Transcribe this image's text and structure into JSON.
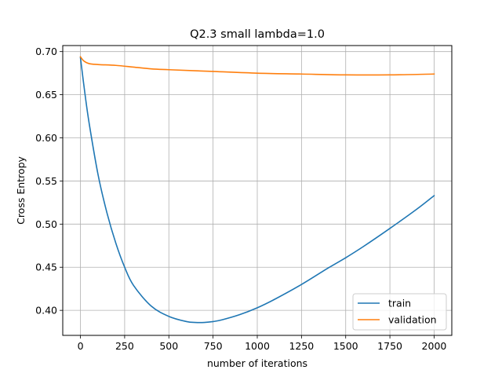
{
  "chart_data": {
    "type": "line",
    "title": "Q2.3 small lambda=1.0",
    "xlabel": "number of iterations",
    "ylabel": "Cross Entropy",
    "xlim": [
      -100,
      2100
    ],
    "ylim": [
      0.371,
      0.707
    ],
    "xticks": [
      0,
      250,
      500,
      750,
      1000,
      1250,
      1500,
      1750,
      2000
    ],
    "yticks": [
      0.4,
      0.45,
      0.5,
      0.55,
      0.6,
      0.65,
      0.7
    ],
    "xtick_labels": [
      "0",
      "250",
      "500",
      "750",
      "1000",
      "1250",
      "1500",
      "1750",
      "2000"
    ],
    "ytick_labels": [
      "0.40",
      "0.45",
      "0.50",
      "0.55",
      "0.60",
      "0.65",
      "0.70"
    ],
    "grid": true,
    "legend_position": "lower-right",
    "series": [
      {
        "name": "train",
        "color": "#1f77b4",
        "x": [
          0,
          25,
          50,
          100,
          150,
          200,
          250,
          300,
          400,
          500,
          600,
          650,
          700,
          750,
          800,
          900,
          1000,
          1100,
          1250,
          1400,
          1500,
          1600,
          1750,
          1900,
          2000
        ],
        "y": [
          0.693,
          0.652,
          0.616,
          0.557,
          0.513,
          0.478,
          0.45,
          0.429,
          0.405,
          0.393,
          0.387,
          0.386,
          0.386,
          0.387,
          0.389,
          0.395,
          0.403,
          0.413,
          0.43,
          0.449,
          0.461,
          0.474,
          0.495,
          0.517,
          0.533
        ]
      },
      {
        "name": "validation",
        "color": "#ff7f0e",
        "x": [
          0,
          20,
          50,
          100,
          200,
          300,
          400,
          500,
          750,
          1000,
          1250,
          1500,
          1750,
          2000
        ],
        "y": [
          0.694,
          0.689,
          0.686,
          0.685,
          0.684,
          0.682,
          0.68,
          0.679,
          0.677,
          0.675,
          0.674,
          0.673,
          0.673,
          0.674
        ]
      }
    ]
  }
}
